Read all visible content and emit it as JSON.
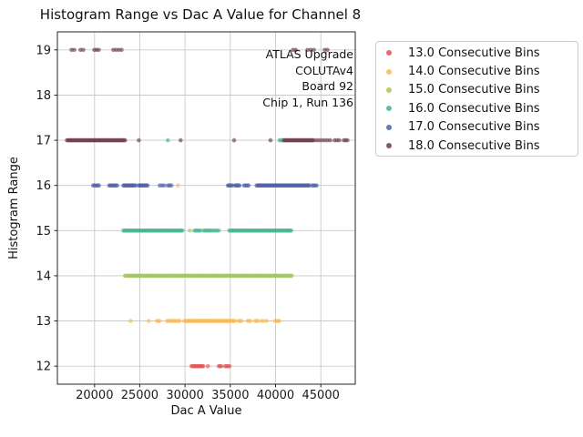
{
  "annotation": {
    "lines": [
      "ATLAS Upgrade",
      "COLUTAv4",
      "Board 92",
      "Chip 1, Run 136"
    ]
  },
  "chart_data": {
    "type": "scatter",
    "title": "Histogram Range vs Dac A Value for Channel 8",
    "xlabel": "Dac A Value",
    "ylabel": "Histogram Range",
    "xlim": [
      15900,
      48800
    ],
    "ylim": [
      11.6,
      19.4
    ],
    "x_ticks": [
      20000,
      25000,
      30000,
      35000,
      40000,
      45000
    ],
    "y_ticks": [
      12,
      13,
      14,
      15,
      16,
      17,
      18,
      19
    ],
    "grid": true,
    "grid_color": "#c9c9c9",
    "spine_color": "#262626",
    "marker_opacity": 0.65,
    "legend_position": "upper right, outside axes",
    "series": [
      {
        "name": "13.0 Consecutive Bins",
        "bins": 13.0,
        "color": "#e4534e",
        "clusters": [
          {
            "y": 12,
            "segments": [
              [
                30710,
                32020,
                11
              ],
              [
                32520,
                32520,
                1
              ],
              [
                33720,
                34020,
                3
              ],
              [
                34420,
                34920,
                4
              ]
            ]
          }
        ]
      },
      {
        "name": "14.0 Consecutive Bins",
        "bins": 14.0,
        "color": "#fbba55",
        "clusters": [
          {
            "y": 13,
            "segments": [
              [
                23990,
                23990,
                1
              ],
              [
                25990,
                25990,
                1
              ],
              [
                26900,
                27200,
                3
              ],
              [
                28000,
                29410,
                9
              ],
              [
                29910,
                35520,
                50
              ],
              [
                35920,
                36220,
                3
              ],
              [
                36920,
                37220,
                3
              ],
              [
                37730,
                38030,
                3
              ],
              [
                38430,
                38730,
                2
              ],
              [
                39030,
                39030,
                1
              ],
              [
                39930,
                40430,
                4
              ]
            ]
          },
          {
            "y": 16,
            "segments": [
              [
                29210,
                29210,
                1
              ]
            ]
          }
        ]
      },
      {
        "name": "15.0 Consecutive Bins",
        "bins": 15.0,
        "color": "#a3c75a",
        "clusters": [
          {
            "y": 14,
            "segments": [
              [
                23350,
                41800,
                160
              ]
            ]
          },
          {
            "y": 15,
            "segments": [
              [
                30540,
                30540,
                1
              ]
            ]
          }
        ]
      },
      {
        "name": "16.0 Consecutive Bins",
        "bins": 16.0,
        "color": "#46b592",
        "clusters": [
          {
            "y": 15,
            "segments": [
              [
                23180,
                29710,
                56
              ],
              [
                31040,
                31720,
                5
              ],
              [
                32050,
                32720,
                5
              ],
              [
                32890,
                33720,
                5
              ],
              [
                34890,
                41730,
                60
              ]
            ]
          },
          {
            "y": 17,
            "segments": [
              [
                28100,
                28100,
                1
              ],
              [
                40430,
                40930,
                4
              ]
            ]
          }
        ]
      },
      {
        "name": "17.0 Consecutive Bins",
        "bins": 17.0,
        "color": "#4d60a8",
        "clusters": [
          {
            "y": 16,
            "segments": [
              [
                19840,
                20500,
                5
              ],
              [
                21610,
                22510,
                7
              ],
              [
                23180,
                24520,
                13
              ],
              [
                24860,
                25860,
                9
              ],
              [
                27200,
                27700,
                3
              ],
              [
                28100,
                28500,
                3
              ],
              [
                34720,
                35220,
                5
              ],
              [
                35520,
                36020,
                5
              ],
              [
                36520,
                37020,
                4
              ],
              [
                37900,
                43730,
                52
              ],
              [
                44030,
                44530,
                4
              ]
            ]
          }
        ]
      },
      {
        "name": "18.0 Consecutive Bins",
        "bins": 18.0,
        "color": "#6e3e50",
        "clusters": [
          {
            "y": 17,
            "segments": [
              [
                16960,
                23380,
                56
              ],
              [
                24890,
                24890,
                1
              ],
              [
                29510,
                29510,
                1
              ],
              [
                35420,
                35420,
                1
              ],
              [
                39430,
                39430,
                1
              ],
              [
                40930,
                44230,
                30
              ],
              [
                44530,
                45430,
                4
              ],
              [
                45730,
                46030,
                2
              ],
              [
                46530,
                47030,
                3
              ],
              [
                47530,
                47930,
                3
              ]
            ]
          },
          {
            "y": 19,
            "segments": [
              [
                17460,
                17760,
                2
              ],
              [
                18460,
                18760,
                2
              ],
              [
                19970,
                20470,
                3
              ],
              [
                22080,
                22980,
                4
              ],
              [
                41930,
                42230,
                2
              ],
              [
                43530,
                44230,
                3
              ],
              [
                45430,
                45730,
                2
              ]
            ]
          }
        ]
      }
    ]
  }
}
